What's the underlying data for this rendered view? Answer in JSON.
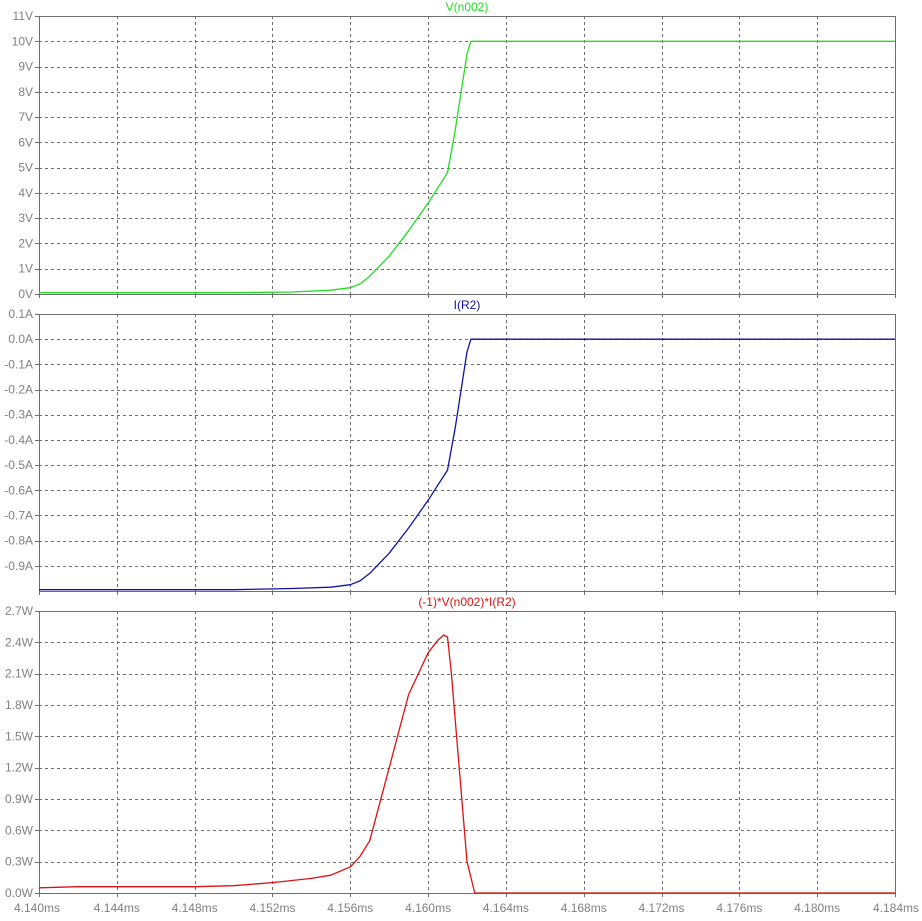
{
  "colors": {
    "background": "#ffffff",
    "plot_frame": "#6e6e6e",
    "grid": "#6e6e6e",
    "tick_text": "#808080",
    "voltage": "#22dd22",
    "current": "#1111aa",
    "power": "#dd1111"
  },
  "chart_data": [
    {
      "type": "line",
      "title": "V(n002)",
      "xlim": [
        4.14,
        4.184
      ],
      "ylim": [
        0,
        11
      ],
      "x_ticks": [
        "4.140ms",
        "4.144ms",
        "4.148ms",
        "4.152ms",
        "4.156ms",
        "4.160ms",
        "4.164ms",
        "4.168ms",
        "4.172ms",
        "4.176ms",
        "4.180ms",
        "4.184ms"
      ],
      "y_ticks": [
        {
          "value": 11,
          "label": "11V"
        },
        {
          "value": 10,
          "label": "10V"
        },
        {
          "value": 9,
          "label": "9V"
        },
        {
          "value": 8,
          "label": "8V"
        },
        {
          "value": 7,
          "label": "7V"
        },
        {
          "value": 6,
          "label": "6V"
        },
        {
          "value": 5,
          "label": "5V"
        },
        {
          "value": 4,
          "label": "4V"
        },
        {
          "value": 3,
          "label": "3V"
        },
        {
          "value": 2,
          "label": "2V"
        },
        {
          "value": 1,
          "label": "1V"
        },
        {
          "value": 0,
          "label": "0V"
        }
      ],
      "grid": true,
      "series": [
        {
          "color": "voltage",
          "x": [
            4.14,
            4.15,
            4.153,
            4.155,
            4.156,
            4.1565,
            4.157,
            4.158,
            4.159,
            4.16,
            4.1605,
            4.161,
            4.1614,
            4.1618,
            4.162,
            4.1622,
            4.184
          ],
          "y": [
            0.05,
            0.05,
            0.08,
            0.15,
            0.25,
            0.4,
            0.7,
            1.5,
            2.5,
            3.6,
            4.2,
            4.8,
            6.5,
            8.5,
            9.5,
            10.0,
            10.0
          ]
        }
      ]
    },
    {
      "type": "line",
      "title": "I(R2)",
      "xlim": [
        4.14,
        4.184
      ],
      "ylim": [
        -1.0,
        0.1
      ],
      "x_ticks": [
        "4.140ms",
        "4.144ms",
        "4.148ms",
        "4.152ms",
        "4.156ms",
        "4.160ms",
        "4.164ms",
        "4.168ms",
        "4.172ms",
        "4.176ms",
        "4.180ms",
        "4.184ms"
      ],
      "y_ticks": [
        {
          "value": 0.1,
          "label": "0.1A"
        },
        {
          "value": 0.0,
          "label": "0.0A"
        },
        {
          "value": -0.1,
          "label": "-0.1A"
        },
        {
          "value": -0.2,
          "label": "-0.2A"
        },
        {
          "value": -0.3,
          "label": "-0.3A"
        },
        {
          "value": -0.4,
          "label": "-0.4A"
        },
        {
          "value": -0.5,
          "label": "-0.5A"
        },
        {
          "value": -0.6,
          "label": "-0.6A"
        },
        {
          "value": -0.7,
          "label": "-0.7A"
        },
        {
          "value": -0.8,
          "label": "-0.8A"
        },
        {
          "value": -0.9,
          "label": "-0.9A"
        }
      ],
      "grid": true,
      "series": [
        {
          "color": "current",
          "x": [
            4.14,
            4.15,
            4.153,
            4.155,
            4.156,
            4.1565,
            4.157,
            4.158,
            4.159,
            4.16,
            4.1605,
            4.161,
            4.1614,
            4.1618,
            4.162,
            4.1622,
            4.184
          ],
          "y": [
            -0.995,
            -0.995,
            -0.99,
            -0.985,
            -0.975,
            -0.96,
            -0.93,
            -0.85,
            -0.75,
            -0.64,
            -0.58,
            -0.52,
            -0.35,
            -0.15,
            -0.05,
            0.0,
            0.0
          ]
        }
      ]
    },
    {
      "type": "line",
      "title": "(-1)*V(n002)*I(R2)",
      "xlim": [
        4.14,
        4.184
      ],
      "ylim": [
        0,
        2.7
      ],
      "x_ticks": [
        "4.140ms",
        "4.144ms",
        "4.148ms",
        "4.152ms",
        "4.156ms",
        "4.160ms",
        "4.164ms",
        "4.168ms",
        "4.172ms",
        "4.176ms",
        "4.180ms",
        "4.184ms"
      ],
      "y_ticks": [
        {
          "value": 2.7,
          "label": "2.7W"
        },
        {
          "value": 2.4,
          "label": "2.4W"
        },
        {
          "value": 2.1,
          "label": "2.1W"
        },
        {
          "value": 1.8,
          "label": "1.8W"
        },
        {
          "value": 1.5,
          "label": "1.5W"
        },
        {
          "value": 1.2,
          "label": "1.2W"
        },
        {
          "value": 0.9,
          "label": "0.9W"
        },
        {
          "value": 0.6,
          "label": "0.6W"
        },
        {
          "value": 0.3,
          "label": "0.3W"
        },
        {
          "value": 0.0,
          "label": "0.0W"
        }
      ],
      "grid": true,
      "series": [
        {
          "color": "power",
          "x": [
            4.14,
            4.142,
            4.148,
            4.15,
            4.152,
            4.154,
            4.155,
            4.156,
            4.1565,
            4.157,
            4.158,
            4.159,
            4.16,
            4.1605,
            4.1608,
            4.161,
            4.1612,
            4.1616,
            4.162,
            4.1624,
            4.184
          ],
          "y": [
            0.05,
            0.06,
            0.06,
            0.07,
            0.1,
            0.14,
            0.17,
            0.25,
            0.35,
            0.5,
            1.2,
            1.9,
            2.3,
            2.42,
            2.47,
            2.45,
            2.1,
            1.2,
            0.3,
            0.0,
            0.0
          ]
        }
      ]
    }
  ]
}
